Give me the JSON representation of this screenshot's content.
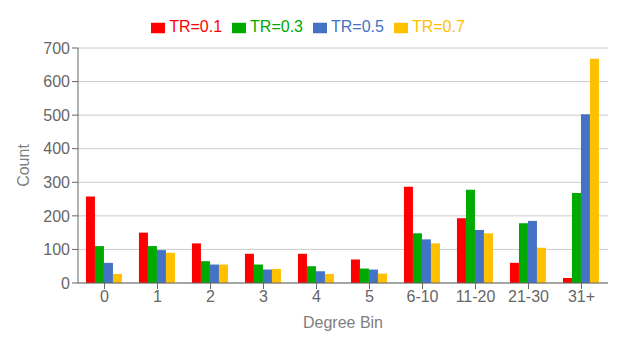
{
  "chart_data": {
    "type": "bar",
    "categories": [
      "0",
      "1",
      "2",
      "3",
      "4",
      "5",
      "6-10",
      "11-20",
      "21-30",
      "31+"
    ],
    "series": [
      {
        "name": "TR=0.1",
        "color": "#FF0000",
        "values": [
          258,
          150,
          118,
          87,
          87,
          70,
          287,
          193,
          60,
          15
        ]
      },
      {
        "name": "TR=0.3",
        "color": "#00AA00",
        "values": [
          110,
          110,
          65,
          55,
          50,
          43,
          148,
          278,
          178,
          268
        ]
      },
      {
        "name": "TR=0.5",
        "color": "#4472C4",
        "values": [
          60,
          98,
          55,
          40,
          35,
          40,
          130,
          158,
          185,
          503
        ]
      },
      {
        "name": "TR=0.7",
        "color": "#FFC000",
        "values": [
          27,
          90,
          55,
          42,
          27,
          28,
          118,
          148,
          105,
          668
        ]
      }
    ],
    "xlabel": "Degree Bin",
    "ylabel": "Count",
    "ylim": [
      0,
      700
    ],
    "yticks": [
      0,
      100,
      200,
      300,
      400,
      500,
      600,
      700
    ],
    "grid": true,
    "legend": "top"
  }
}
